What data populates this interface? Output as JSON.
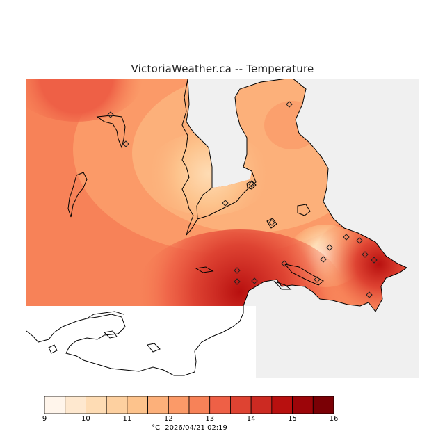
{
  "title": "VictoriaWeather.ca  --  Temperature",
  "colors": {
    "land_background": "#f0f0f0",
    "water": "#ffffff",
    "coast": "#000000"
  },
  "legend": {
    "unit": "°C",
    "timestamp": "2026/04/21 02:19",
    "ticks": [
      "9",
      "10",
      "11",
      "12",
      "13",
      "14",
      "15",
      "16"
    ],
    "bins": [
      {
        "from": 9.0,
        "to": 9.5,
        "color": "#fff5eb"
      },
      {
        "from": 9.5,
        "to": 10.0,
        "color": "#fee8cf"
      },
      {
        "from": 10.0,
        "to": 10.5,
        "color": "#fedcb4"
      },
      {
        "from": 10.5,
        "to": 11.0,
        "color": "#fdd0a0"
      },
      {
        "from": 11.0,
        "to": 11.5,
        "color": "#fdc38c"
      },
      {
        "from": 11.5,
        "to": 12.0,
        "color": "#fcb07a"
      },
      {
        "from": 12.0,
        "to": 12.5,
        "color": "#fb9a68"
      },
      {
        "from": 12.5,
        "to": 13.0,
        "color": "#f78258"
      },
      {
        "from": 13.0,
        "to": 13.5,
        "color": "#ee6046"
      },
      {
        "from": 13.5,
        "to": 14.0,
        "color": "#de4332"
      },
      {
        "from": 14.0,
        "to": 14.5,
        "color": "#cc2a22"
      },
      {
        "from": 14.5,
        "to": 15.0,
        "color": "#b8100f"
      },
      {
        "from": 15.0,
        "to": 15.5,
        "color": "#9c0509"
      },
      {
        "from": 15.5,
        "to": 16.0,
        "color": "#7a0005"
      }
    ]
  }
}
